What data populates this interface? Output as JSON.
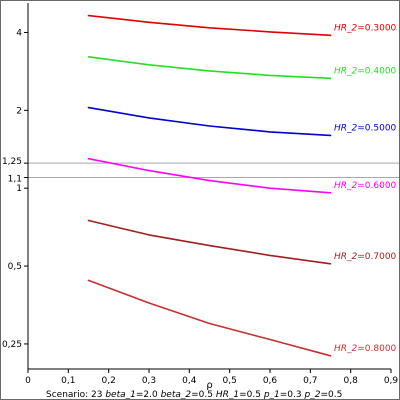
{
  "chart_data": {
    "type": "line",
    "xlabel": "ρ",
    "x_scale": "linear",
    "y_scale": "log",
    "xlim": [
      0,
      0.9
    ],
    "ylim": [
      0.2,
      5.2
    ],
    "x_ticks": [
      0,
      0.1,
      0.2,
      0.3,
      0.4,
      0.5,
      0.6,
      0.7,
      0.8,
      0.9
    ],
    "x_tick_labels": [
      "0",
      "0,1",
      "0,2",
      "0,3",
      "0,4",
      "0,5",
      "0,6",
      "0,7",
      "0,8",
      "0,9"
    ],
    "y_ticks": [
      0.25,
      0.5,
      1,
      1.1,
      1.25,
      2,
      4
    ],
    "y_tick_labels": [
      "0,25",
      "0,5",
      "1",
      "1,1",
      "1,25",
      "2",
      "4"
    ],
    "reference_lines": [
      {
        "y": 1.25,
        "color": "#a9a9a9"
      },
      {
        "y": 1.1,
        "color": "#a9a9a9"
      }
    ],
    "series": [
      {
        "name": "HR_2 = 0.3000",
        "label_name": "HR_2",
        "label_value": "0.3000",
        "color": "#e00000",
        "x": [
          0.15,
          0.3,
          0.45,
          0.6,
          0.75
        ],
        "y": [
          4.65,
          4.38,
          4.17,
          4.02,
          3.9
        ]
      },
      {
        "name": "HR_2 = 0.4000",
        "label_name": "HR_2",
        "label_value": "0.4000",
        "color": "#22e022",
        "x": [
          0.15,
          0.3,
          0.45,
          0.6,
          0.75
        ],
        "y": [
          3.22,
          3.0,
          2.84,
          2.73,
          2.66
        ]
      },
      {
        "name": "HR_2 = 0.5000",
        "label_name": "HR_2",
        "label_value": "0.5000",
        "color": "#0000d0",
        "x": [
          0.15,
          0.3,
          0.45,
          0.6,
          0.75
        ],
        "y": [
          2.05,
          1.87,
          1.74,
          1.65,
          1.6
        ]
      },
      {
        "name": "HR_2 = 0.6000",
        "label_name": "HR_2",
        "label_value": "0.6000",
        "color": "#ff00ff",
        "x": [
          0.15,
          0.3,
          0.45,
          0.6,
          0.75
        ],
        "y": [
          1.3,
          1.17,
          1.07,
          1.0,
          0.96
        ]
      },
      {
        "name": "HR_2 = 0.7000",
        "label_name": "HR_2",
        "label_value": "0.7000",
        "color": "#a02020",
        "x": [
          0.15,
          0.3,
          0.45,
          0.6,
          0.75
        ],
        "y": [
          0.75,
          0.66,
          0.6,
          0.55,
          0.51
        ]
      },
      {
        "name": "HR_2 = 0.8000",
        "label_name": "HR_2",
        "label_value": "0.8000",
        "color": "#c83030",
        "x": [
          0.15,
          0.3,
          0.45,
          0.6,
          0.75
        ],
        "y": [
          0.44,
          0.36,
          0.3,
          0.26,
          0.225
        ]
      }
    ]
  },
  "caption": {
    "scenario_label": "Scenario:",
    "scenario_value": "23",
    "params": [
      {
        "name": "beta_1",
        "value": "2.0"
      },
      {
        "name": "beta_2",
        "value": "0.5"
      },
      {
        "name": "HR_1",
        "value": "0.5"
      },
      {
        "name": "p_1",
        "value": "0.3"
      },
      {
        "name": "p_2",
        "value": "0.5"
      }
    ]
  }
}
